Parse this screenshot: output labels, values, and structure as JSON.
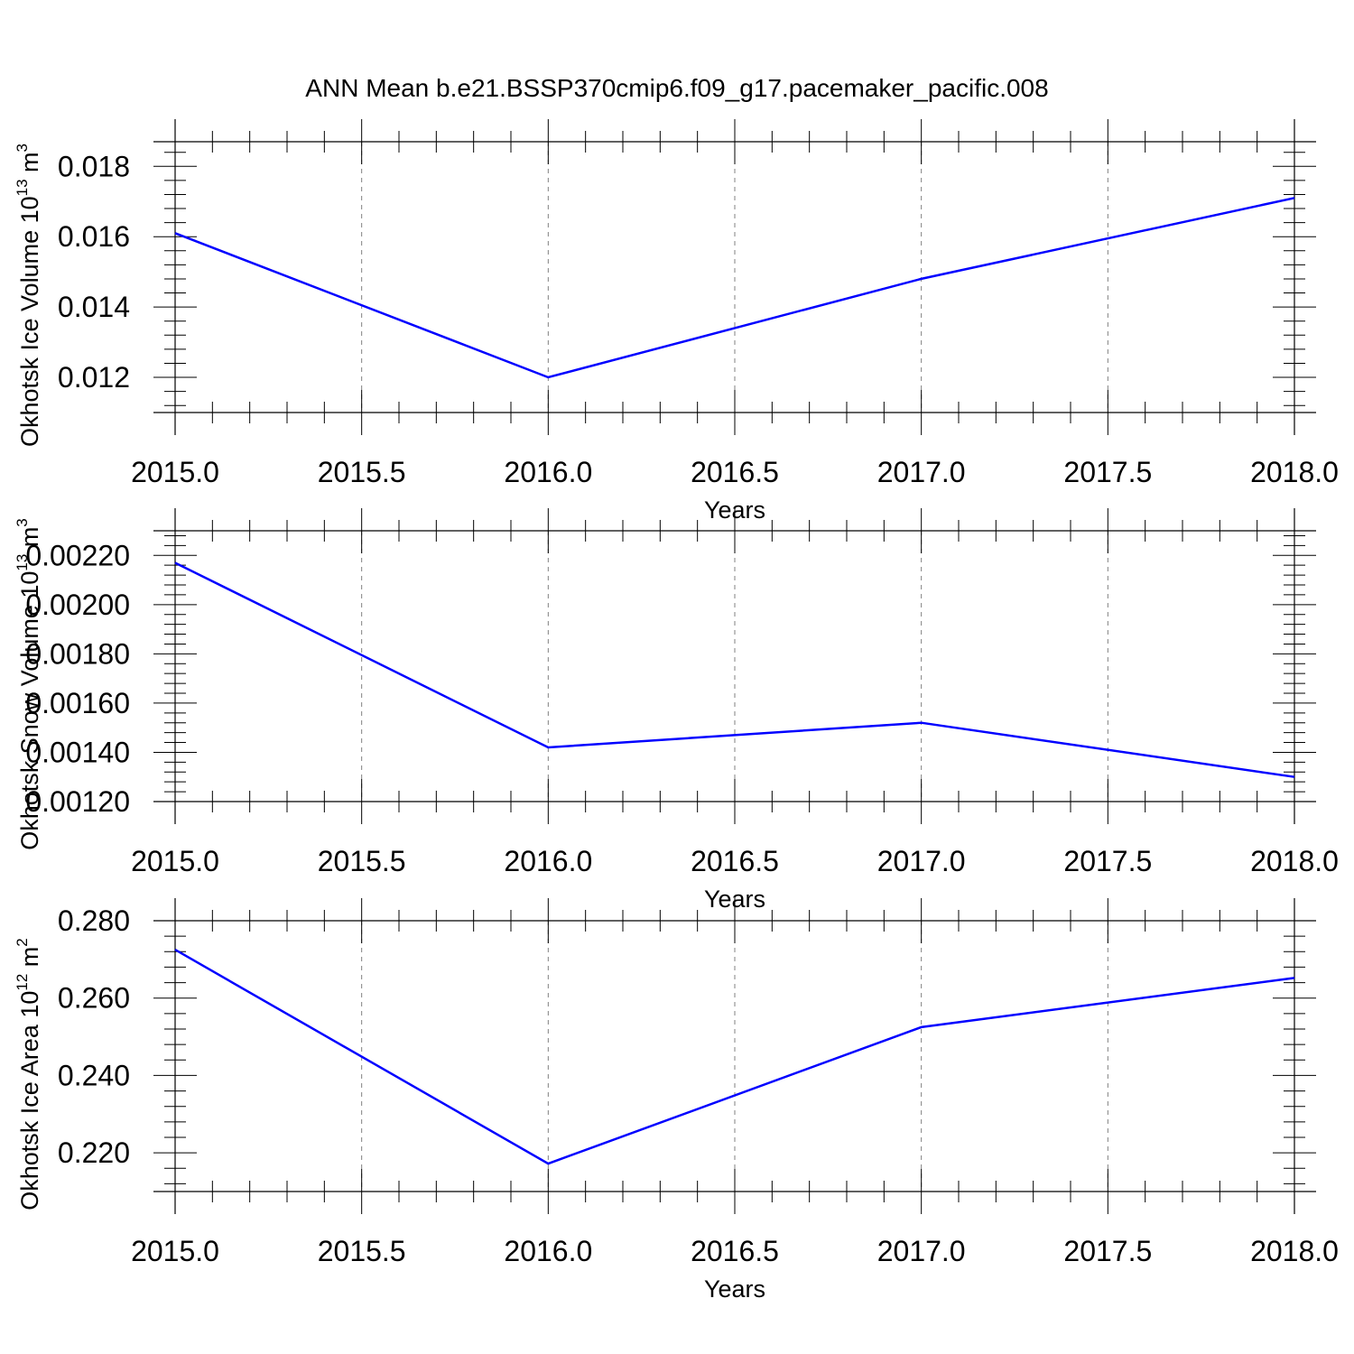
{
  "figure": {
    "title": "ANN Mean b.e21.BSSP370cmip6.f09_g17.pacemaker_pacific.008",
    "line_color": "#0000ff",
    "axis_color": "#000000",
    "grid_color": "#808080"
  },
  "chart_data": [
    {
      "type": "line",
      "xlabel": "Years",
      "ylabel": "Okhotsk Ice Volume 10",
      "ylabel_exp": "13",
      "ylabel_unit": " m",
      "ylabel_unit_exp": "3",
      "xlim": [
        2015.0,
        2018.0
      ],
      "ylim": [
        0.011,
        0.0187
      ],
      "xticks": [
        2015.0,
        2015.5,
        2016.0,
        2016.5,
        2017.0,
        2017.5,
        2018.0
      ],
      "xtick_labels": [
        "2015.0",
        "2015.5",
        "2016.0",
        "2016.5",
        "2017.0",
        "2017.5",
        "2018.0"
      ],
      "yticks": [
        0.012,
        0.014,
        0.016,
        0.018
      ],
      "ytick_labels": [
        "0.012",
        "0.014",
        "0.016",
        "0.018"
      ],
      "ytick_minor_step": 0.0004,
      "x": [
        2015,
        2016,
        2017,
        2018
      ],
      "values": [
        0.0161,
        0.012,
        0.0148,
        0.0171
      ],
      "grid": "vertical-dashed"
    },
    {
      "type": "line",
      "xlabel": "Years",
      "ylabel": "Okhotsk Snow Volume 10",
      "ylabel_exp": "13",
      "ylabel_unit": " m",
      "ylabel_unit_exp": "3",
      "xlim": [
        2015.0,
        2018.0
      ],
      "ylim": [
        0.0012,
        0.0023
      ],
      "xticks": [
        2015.0,
        2015.5,
        2016.0,
        2016.5,
        2017.0,
        2017.5,
        2018.0
      ],
      "xtick_labels": [
        "2015.0",
        "2015.5",
        "2016.0",
        "2016.5",
        "2017.0",
        "2017.5",
        "2018.0"
      ],
      "yticks": [
        0.0012,
        0.0014,
        0.0016,
        0.0018,
        0.002,
        0.0022
      ],
      "ytick_labels": [
        "0.00120",
        "0.00140",
        "0.00160",
        "0.00180",
        "0.00200",
        "0.00220"
      ],
      "ytick_minor_step": 4e-05,
      "x": [
        2015,
        2016,
        2017,
        2018
      ],
      "values": [
        0.00217,
        0.00142,
        0.00152,
        0.0013
      ],
      "grid": "vertical-dashed"
    },
    {
      "type": "line",
      "xlabel": "Years",
      "ylabel": "Okhotsk Ice Area 10",
      "ylabel_exp": "12",
      "ylabel_unit": " m",
      "ylabel_unit_exp": "2",
      "xlim": [
        2015.0,
        2018.0
      ],
      "ylim": [
        0.21,
        0.28
      ],
      "xticks": [
        2015.0,
        2015.5,
        2016.0,
        2016.5,
        2017.0,
        2017.5,
        2018.0
      ],
      "xtick_labels": [
        "2015.0",
        "2015.5",
        "2016.0",
        "2016.5",
        "2017.0",
        "2017.5",
        "2018.0"
      ],
      "yticks": [
        0.22,
        0.24,
        0.26,
        0.28
      ],
      "ytick_labels": [
        "0.220",
        "0.240",
        "0.260",
        "0.280"
      ],
      "ytick_minor_step": 0.004,
      "x": [
        2015,
        2016,
        2017,
        2018
      ],
      "values": [
        0.2725,
        0.2172,
        0.2525,
        0.2652
      ],
      "grid": "vertical-dashed"
    }
  ]
}
